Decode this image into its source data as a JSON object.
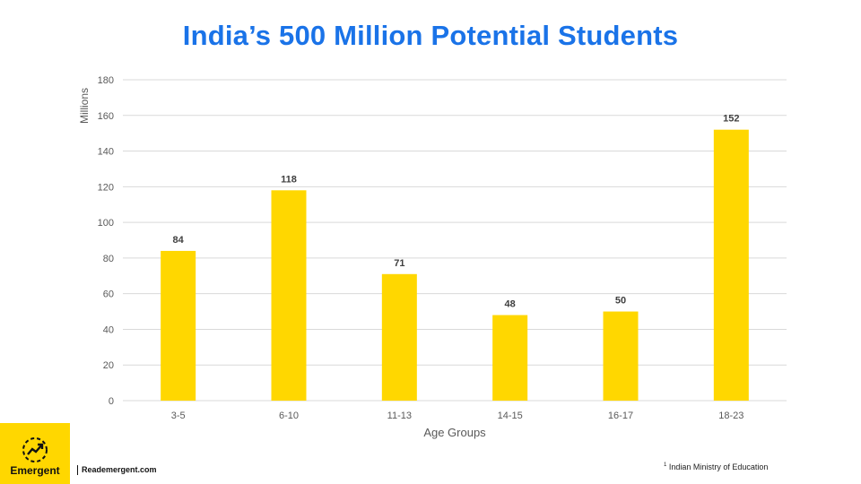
{
  "chart_data": {
    "type": "bar",
    "title": "India’s 500 Million Potential Students",
    "xlabel": "Age Groups",
    "ylabel": "Millions",
    "categories": [
      "3-5",
      "6-10",
      "11-13",
      "14-15",
      "16-17",
      "18-23"
    ],
    "values": [
      84,
      118,
      71,
      48,
      50,
      152
    ],
    "ylim": [
      0,
      180
    ],
    "yticks": [
      0,
      20,
      40,
      60,
      80,
      100,
      120,
      140,
      160,
      180
    ],
    "grid": true,
    "bar_color": "#ffd700"
  },
  "brand": {
    "name": "Emergent",
    "site": "Reademergent.com",
    "color": "#ffd700"
  },
  "source": {
    "marker": "1",
    "text": "Indian Ministry of Education"
  },
  "colors": {
    "title": "#1a73e8",
    "grid": "#d9d9d9",
    "axis_text": "#595959"
  }
}
